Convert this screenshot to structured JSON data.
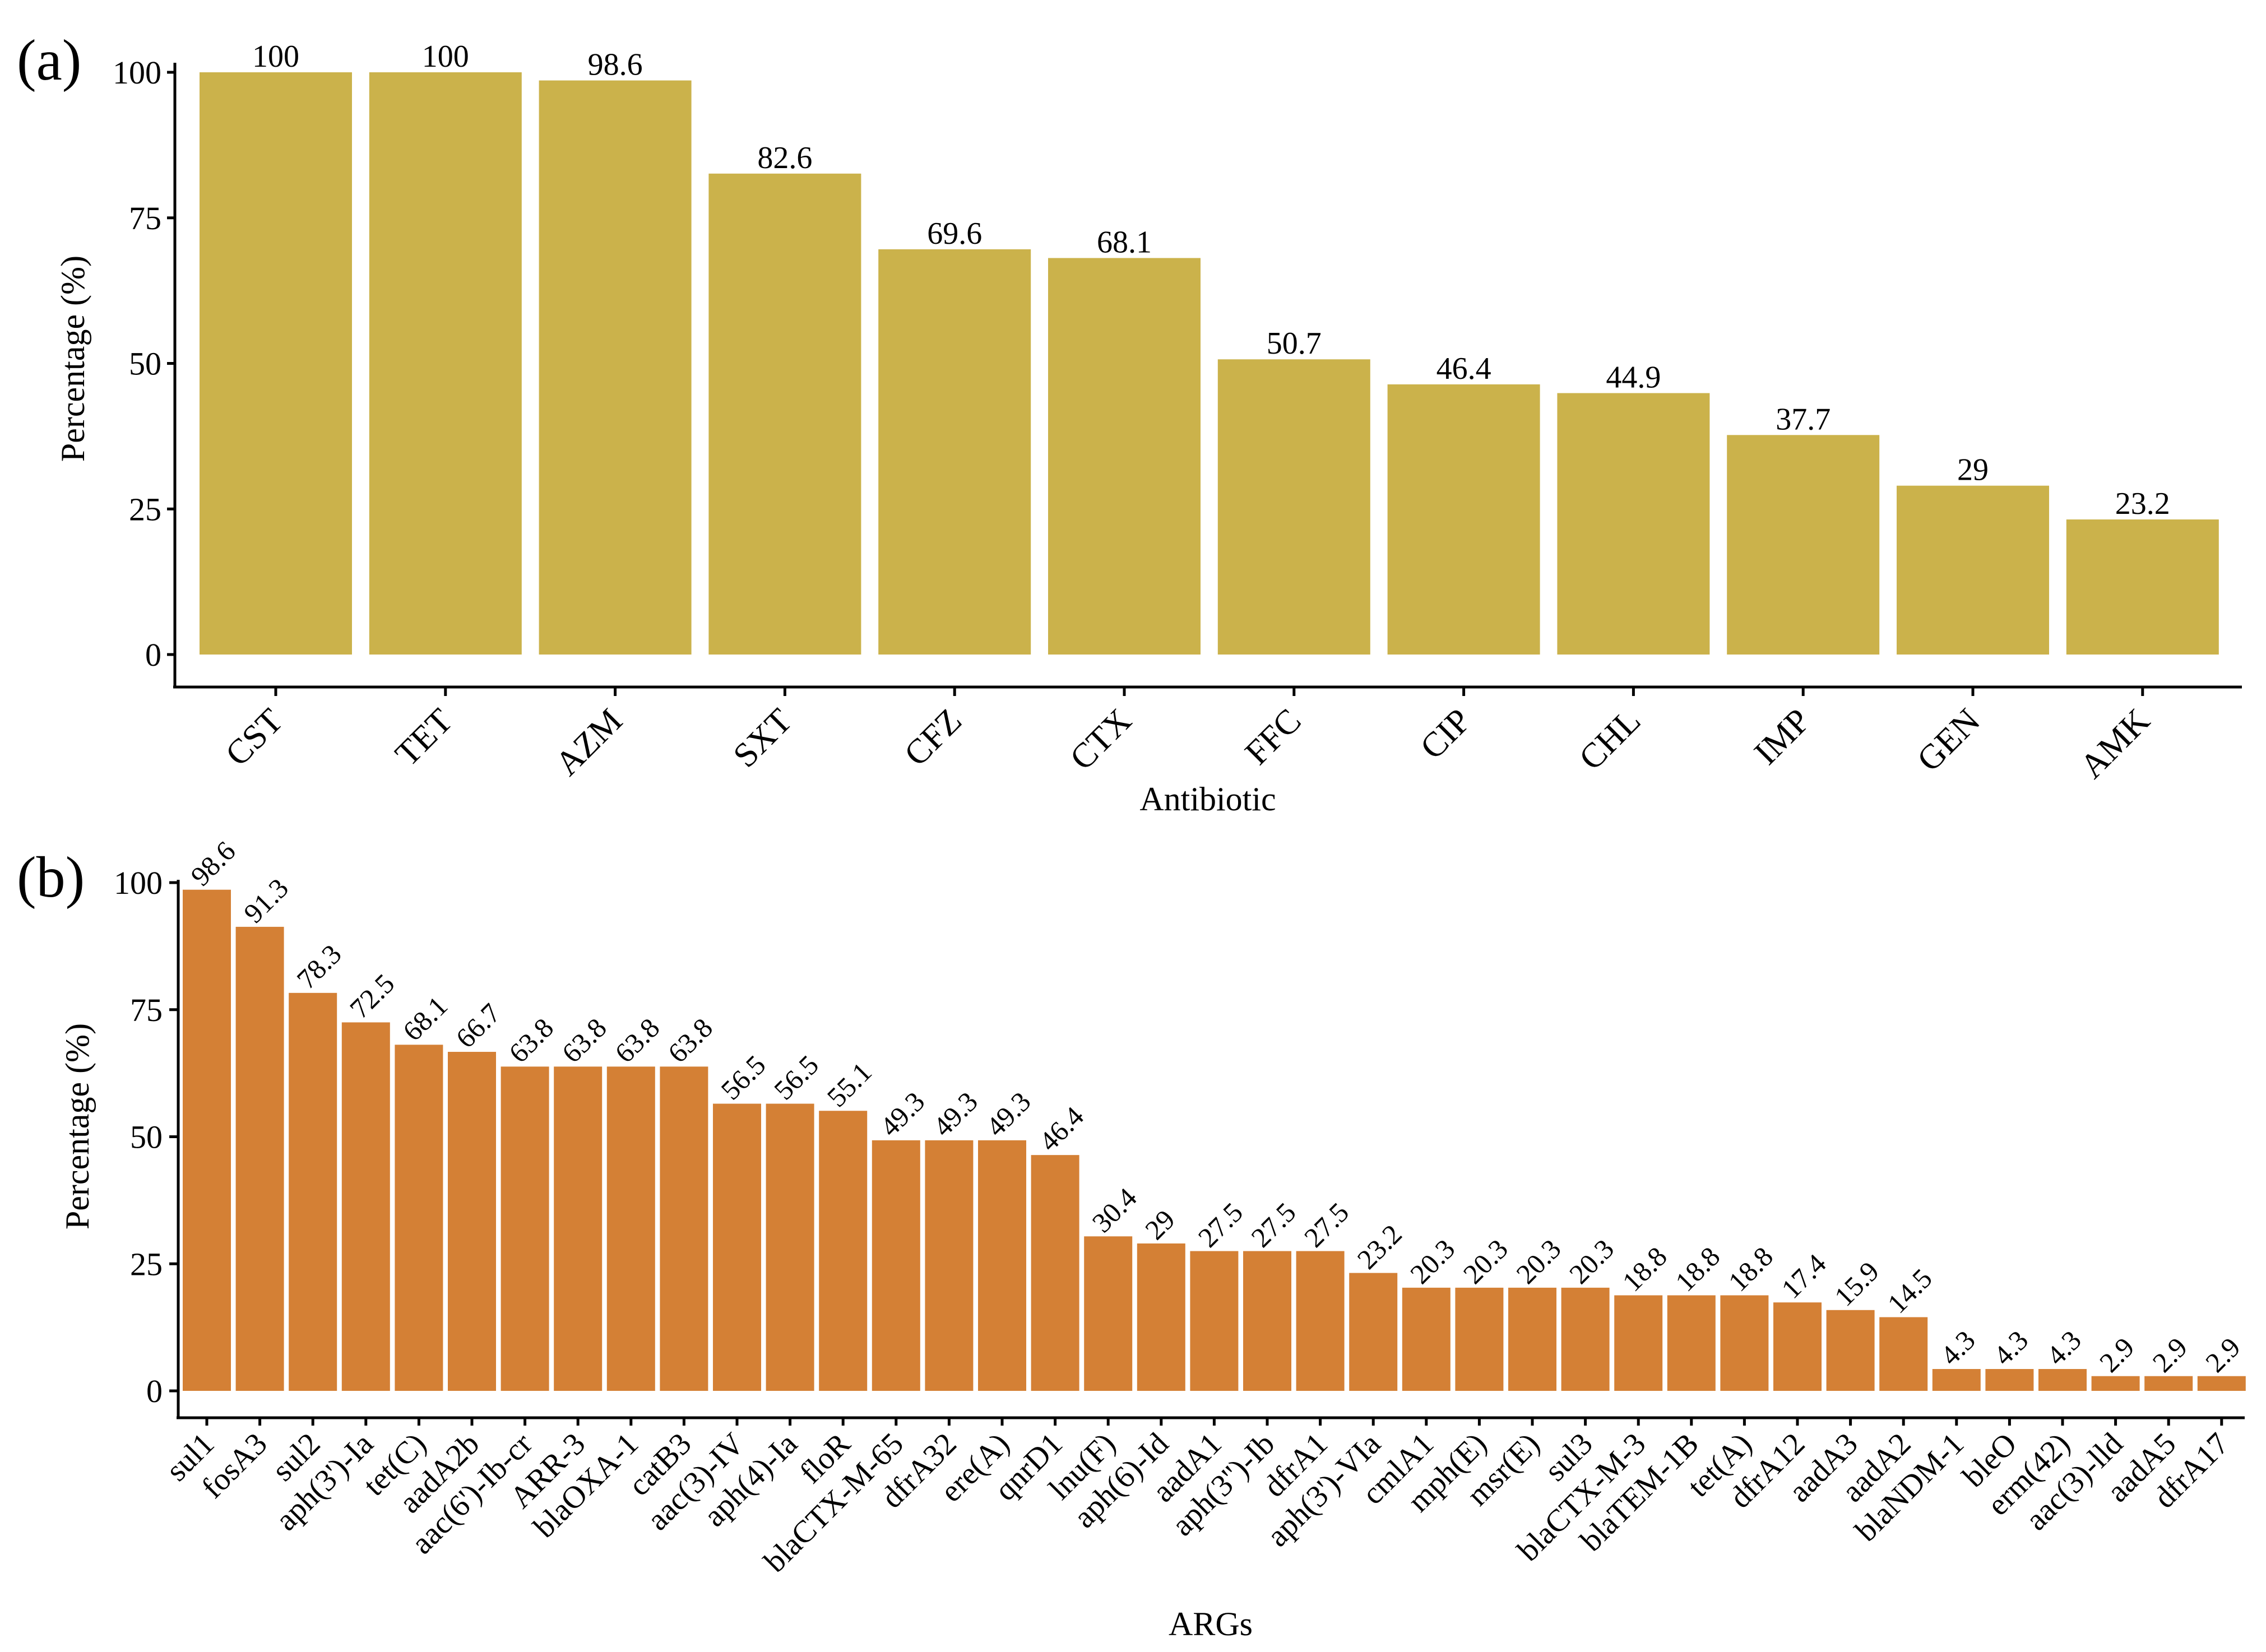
{
  "chart_data": [
    {
      "panel": "(a)",
      "type": "bar",
      "categories": [
        "CST",
        "TET",
        "AZM",
        "SXT",
        "CFZ",
        "CTX",
        "FFC",
        "CIP",
        "CHL",
        "IMP",
        "GEN",
        "AMK"
      ],
      "values": [
        100,
        100,
        98.6,
        82.6,
        69.6,
        68.1,
        50.7,
        46.4,
        44.9,
        37.7,
        29,
        23.2
      ],
      "value_labels": [
        "100",
        "100",
        "98.6",
        "82.6",
        "69.6",
        "68.1",
        "50.7",
        "46.4",
        "44.9",
        "37.7",
        "29",
        "23.2"
      ],
      "xlabel": "Antibiotic",
      "ylabel": "Percentage (%)",
      "ylim": [
        0,
        100
      ],
      "yticks": [
        0,
        25,
        50,
        75,
        100
      ],
      "ytick_labels": [
        "0",
        "25",
        "50",
        "75",
        "100"
      ],
      "grid": false,
      "bar_color": "#CBB24B"
    },
    {
      "panel": "(b)",
      "type": "bar",
      "categories": [
        "sul1",
        "fosA3",
        "sul2",
        "aph(3')-Ia",
        "tet(C)",
        "aadA2b",
        "aac(6')-Ib-cr",
        "ARR-3",
        "blaOXA-1",
        "catB3",
        "aac(3)-IV",
        "aph(4)-Ia",
        "floR",
        "blaCTX-M-65",
        "dfrA32",
        "ere(A)",
        "qnrD1",
        "lnu(F)",
        "aph(6)-Id",
        "aadA1",
        "aph(3'')-Ib",
        "dfrA1",
        "aph(3')-VIa",
        "cmlA1",
        "mph(E)",
        "msr(E)",
        "sul3",
        "blaCTX-M-3",
        "blaTEM-1B",
        "tet(A)",
        "dfrA12",
        "aadA3",
        "aadA2",
        "blaNDM-1",
        "bleO",
        "erm(42)",
        "aac(3)-lld",
        "aadA5",
        "dfrA17"
      ],
      "values": [
        98.6,
        91.3,
        78.3,
        72.5,
        68.1,
        66.7,
        63.8,
        63.8,
        63.8,
        63.8,
        56.5,
        56.5,
        55.1,
        49.3,
        49.3,
        49.3,
        46.4,
        30.4,
        29,
        27.5,
        27.5,
        27.5,
        23.2,
        20.3,
        20.3,
        20.3,
        20.3,
        18.8,
        18.8,
        18.8,
        17.4,
        15.9,
        14.5,
        4.3,
        4.3,
        4.3,
        2.9,
        2.9,
        2.9
      ],
      "value_labels": [
        "98.6",
        "91.3",
        "78.3",
        "72.5",
        "68.1",
        "66.7",
        "63.8",
        "63.8",
        "63.8",
        "63.8",
        "56.5",
        "56.5",
        "55.1",
        "49.3",
        "49.3",
        "49.3",
        "46.4",
        "30.4",
        "29",
        "27.5",
        "27.5",
        "27.5",
        "23.2",
        "20.3",
        "20.3",
        "20.3",
        "20.3",
        "18.8",
        "18.8",
        "18.8",
        "17.4",
        "15.9",
        "14.5",
        "4.3",
        "4.3",
        "4.3",
        "2.9",
        "2.9",
        "2.9"
      ],
      "xlabel": "ARGs",
      "ylabel": "Percentage (%)",
      "ylim": [
        0,
        100
      ],
      "yticks": [
        0,
        25,
        50,
        75,
        100
      ],
      "ytick_labels": [
        "0",
        "25",
        "50",
        "75",
        "100"
      ],
      "grid": false,
      "bar_color": "#D48035"
    }
  ]
}
